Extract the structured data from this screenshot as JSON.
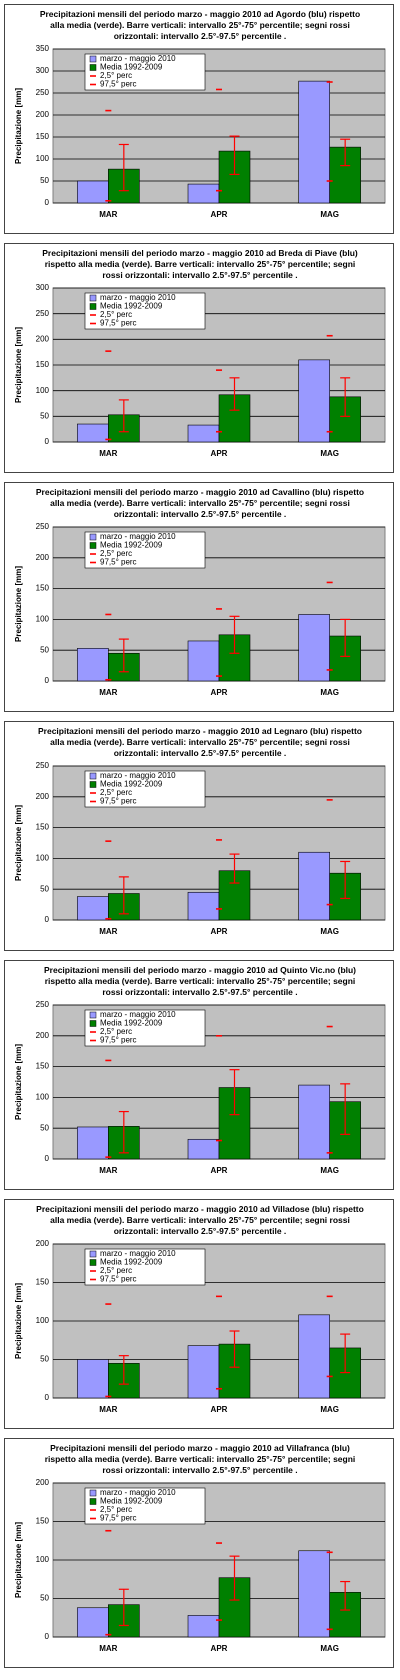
{
  "chart_data": [
    {
      "type": "bar",
      "title": "Precipitazioni mensili del periodo marzo - maggio 2010 ad Agordo (blu) rispetto alla media (verde).  Barre verticali: intervallo 25°-75° percentile; segni rossi orizzontali: intervallo 2.5°-97.5° percentile .",
      "ylabel": "Precipitazione [mm]",
      "categories": [
        "MAR",
        "APR",
        "MAG"
      ],
      "ylim": [
        0,
        350
      ],
      "yticks": [
        0,
        50,
        100,
        150,
        200,
        250,
        300,
        350
      ],
      "series": [
        {
          "name": "marzo - maggio 2010",
          "color": "#9999ff",
          "values": [
            50,
            43,
            277
          ]
        },
        {
          "name": "Media 1992-2009",
          "color": "#008000",
          "values": [
            77,
            118,
            127
          ],
          "range_low": [
            28,
            65,
            85
          ],
          "range_high": [
            133,
            152,
            145
          ]
        },
        {
          "name": "2,5° perc",
          "color": "#ff0000",
          "values": [
            5,
            28,
            50
          ]
        },
        {
          "name": "97,5° perc",
          "color": "#ff0000",
          "values": [
            210,
            258,
            275
          ]
        }
      ]
    },
    {
      "type": "bar",
      "title": "Precipitazioni mensili del periodo marzo - maggio 2010 ad Breda di Piave (blu) rispetto alla media (verde).  Barre verticali: intervallo 25°-75° percentile; segni rossi orizzontali: intervallo 2.5°-97.5° percentile .",
      "ylabel": "Precipitazione [mm]",
      "categories": [
        "MAR",
        "APR",
        "MAG"
      ],
      "ylim": [
        0,
        300
      ],
      "yticks": [
        0,
        50,
        100,
        150,
        200,
        250,
        300
      ],
      "series": [
        {
          "name": "marzo - maggio 2010",
          "color": "#9999ff",
          "values": [
            35,
            33,
            160
          ]
        },
        {
          "name": "Media 1992-2009",
          "color": "#008000",
          "values": [
            53,
            92,
            88
          ],
          "range_low": [
            20,
            62,
            50
          ],
          "range_high": [
            82,
            125,
            125
          ]
        },
        {
          "name": "2,5° perc",
          "color": "#ff0000",
          "values": [
            5,
            20,
            20
          ]
        },
        {
          "name": "97,5° perc",
          "color": "#ff0000",
          "values": [
            177,
            140,
            207
          ]
        }
      ]
    },
    {
      "type": "bar",
      "title": "Precipitazioni mensili del periodo marzo - maggio 2010 ad Cavallino (blu) rispetto alla media (verde).  Barre verticali: intervallo 25°-75° percentile; segni rossi orizzontali: intervallo 2.5°-97.5° percentile .",
      "ylabel": "Precipitazione [mm]",
      "categories": [
        "MAR",
        "APR",
        "MAG"
      ],
      "ylim": [
        0,
        250
      ],
      "yticks": [
        0,
        50,
        100,
        150,
        200,
        250
      ],
      "series": [
        {
          "name": "marzo - maggio 2010",
          "color": "#9999ff",
          "values": [
            53,
            65,
            108
          ]
        },
        {
          "name": "Media 1992-2009",
          "color": "#008000",
          "values": [
            45,
            75,
            73
          ],
          "range_low": [
            15,
            45,
            40
          ],
          "range_high": [
            68,
            105,
            100
          ]
        },
        {
          "name": "2,5° perc",
          "color": "#ff0000",
          "values": [
            2,
            8,
            18
          ]
        },
        {
          "name": "97,5° perc",
          "color": "#ff0000",
          "values": [
            108,
            117,
            160
          ]
        }
      ]
    },
    {
      "type": "bar",
      "title": "Precipitazioni mensili del periodo marzo - maggio 2010 ad Legnaro (blu) rispetto alla media (verde).  Barre verticali: intervallo 25°-75° percentile; segni rossi orizzontali: intervallo 2.5°-97.5° percentile .",
      "ylabel": "Precipitazione [mm]",
      "categories": [
        "MAR",
        "APR",
        "MAG"
      ],
      "ylim": [
        0,
        250
      ],
      "yticks": [
        0,
        50,
        100,
        150,
        200,
        250
      ],
      "series": [
        {
          "name": "marzo - maggio 2010",
          "color": "#9999ff",
          "values": [
            38,
            45,
            110
          ]
        },
        {
          "name": "Media 1992-2009",
          "color": "#008000",
          "values": [
            43,
            80,
            76
          ],
          "range_low": [
            10,
            60,
            35
          ],
          "range_high": [
            70,
            107,
            95
          ]
        },
        {
          "name": "2,5° perc",
          "color": "#ff0000",
          "values": [
            2,
            18,
            25
          ]
        },
        {
          "name": "97,5° perc",
          "color": "#ff0000",
          "values": [
            128,
            130,
            195
          ]
        }
      ]
    },
    {
      "type": "bar",
      "title": "Precipitazioni mensili del periodo marzo - maggio 2010 ad Quinto Vic.no (blu) rispetto alla media (verde).  Barre verticali: intervallo 25°-75° percentile; segni rossi orizzontali: intervallo 2.5°-97.5° percentile .",
      "ylabel": "Precipitazione [mm]",
      "categories": [
        "MAR",
        "APR",
        "MAG"
      ],
      "ylim": [
        0,
        250
      ],
      "yticks": [
        0,
        50,
        100,
        150,
        200,
        250
      ],
      "series": [
        {
          "name": "marzo - maggio 2010",
          "color": "#9999ff",
          "values": [
            52,
            32,
            120
          ]
        },
        {
          "name": "Media 1992-2009",
          "color": "#008000",
          "values": [
            53,
            116,
            93
          ],
          "range_low": [
            10,
            72,
            40
          ],
          "range_high": [
            77,
            145,
            122
          ]
        },
        {
          "name": "2,5° perc",
          "color": "#ff0000",
          "values": [
            3,
            30,
            10
          ]
        },
        {
          "name": "97,5° perc",
          "color": "#ff0000",
          "values": [
            160,
            200,
            215
          ]
        }
      ]
    },
    {
      "type": "bar",
      "title": "Precipitazioni mensili del periodo marzo - maggio 2010 ad Villadose (blu) rispetto alla media (verde).  Barre verticali: intervallo 25°-75° percentile; segni rossi orizzontali: intervallo 2.5°-97.5° percentile .",
      "ylabel": "Precipitazione [mm]",
      "categories": [
        "MAR",
        "APR",
        "MAG"
      ],
      "ylim": [
        0,
        200
      ],
      "yticks": [
        0,
        50,
        100,
        150,
        200
      ],
      "series": [
        {
          "name": "marzo - maggio 2010",
          "color": "#9999ff",
          "values": [
            50,
            68,
            108
          ]
        },
        {
          "name": "Media 1992-2009",
          "color": "#008000",
          "values": [
            45,
            70,
            65
          ],
          "range_low": [
            18,
            40,
            33
          ],
          "range_high": [
            55,
            87,
            83
          ]
        },
        {
          "name": "2,5° perc",
          "color": "#ff0000",
          "values": [
            2,
            12,
            28
          ]
        },
        {
          "name": "97,5° perc",
          "color": "#ff0000",
          "values": [
            122,
            132,
            132
          ]
        }
      ]
    },
    {
      "type": "bar",
      "title": "Precipitazioni mensili del periodo marzo - maggio 2010 ad Villafranca (blu) rispetto alla media (verde).  Barre verticali: intervallo 25°-75° percentile; segni rossi orizzontali: intervallo 2.5°-97.5° percentile .",
      "ylabel": "Precipitazione [mm]",
      "categories": [
        "MAR",
        "APR",
        "MAG"
      ],
      "ylim": [
        0,
        200
      ],
      "yticks": [
        0,
        50,
        100,
        150,
        200
      ],
      "series": [
        {
          "name": "marzo - maggio 2010",
          "color": "#9999ff",
          "values": [
            38,
            28,
            112
          ]
        },
        {
          "name": "Media 1992-2009",
          "color": "#008000",
          "values": [
            42,
            77,
            58
          ],
          "range_low": [
            15,
            48,
            35
          ],
          "range_high": [
            62,
            105,
            72
          ]
        },
        {
          "name": "2,5° perc",
          "color": "#ff0000",
          "values": [
            3,
            22,
            10
          ]
        },
        {
          "name": "97,5° perc",
          "color": "#ff0000",
          "values": [
            138,
            122,
            110
          ]
        }
      ]
    }
  ]
}
